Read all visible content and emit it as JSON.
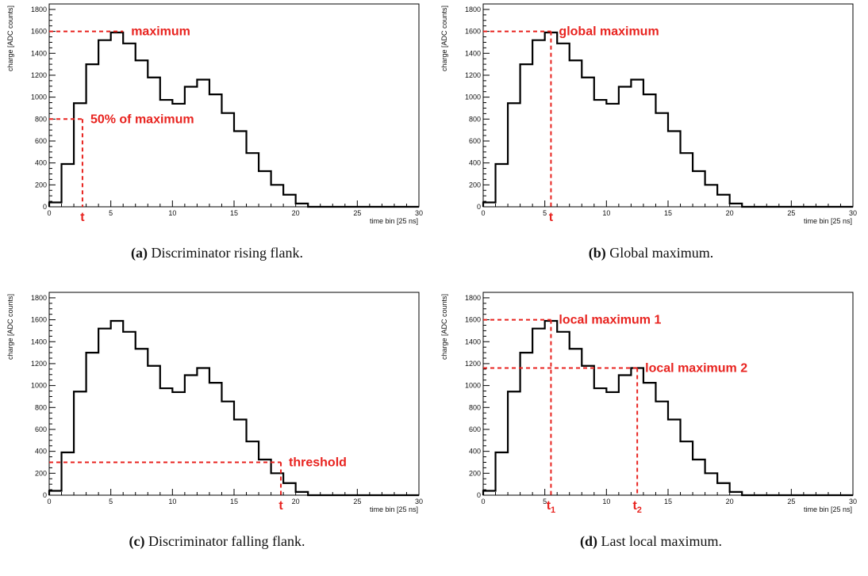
{
  "colors": {
    "annotation": "#e8231f",
    "histogram": "#000000"
  },
  "chart_data": [
    {
      "type": "bar",
      "xlabel": "time bin [25 ns]",
      "ylabel": "charge [ADC counts]",
      "xlim": [
        0,
        30
      ],
      "ylim": [
        0,
        1850
      ],
      "x_ticks": [
        "0",
        "5",
        "10",
        "15",
        "20",
        "25",
        "30"
      ],
      "y_ticks": [
        "0",
        "200",
        "400",
        "600",
        "800",
        "1000",
        "1200",
        "1400",
        "1600",
        "1800"
      ],
      "values": [
        40,
        390,
        945,
        1300,
        1520,
        1590,
        1490,
        1335,
        1180,
        975,
        940,
        1095,
        1160,
        1025,
        855,
        690,
        490,
        325,
        200,
        110,
        30,
        0,
        0,
        0,
        0,
        0,
        0,
        0,
        0,
        0
      ],
      "annotations": [
        {
          "text": "maximum",
          "value": 1600,
          "type": "hline",
          "from_x": 0,
          "to_x": 6
        },
        {
          "text": "50% of maximum",
          "value": 800,
          "type": "hline",
          "from_x": 0,
          "to_x": 2.7
        },
        {
          "type": "vline",
          "x": 2.7,
          "to_y": 800,
          "label": "t"
        }
      ],
      "caption_label": "(a)",
      "caption": "Discriminator rising flank."
    },
    {
      "type": "bar",
      "xlabel": "time bin [25 ns]",
      "ylabel": "charge [ADC counts]",
      "xlim": [
        0,
        30
      ],
      "ylim": [
        0,
        1850
      ],
      "x_ticks": [
        "0",
        "5",
        "10",
        "15",
        "20",
        "25",
        "30"
      ],
      "y_ticks": [
        "0",
        "200",
        "400",
        "600",
        "800",
        "1000",
        "1200",
        "1400",
        "1600",
        "1800"
      ],
      "values": [
        40,
        390,
        945,
        1300,
        1520,
        1590,
        1490,
        1335,
        1180,
        975,
        940,
        1095,
        1160,
        1025,
        855,
        690,
        490,
        325,
        200,
        110,
        30,
        0,
        0,
        0,
        0,
        0,
        0,
        0,
        0,
        0
      ],
      "annotations": [
        {
          "text": "global maximum",
          "value": 1600,
          "type": "hline",
          "from_x": 0,
          "to_x": 5.5
        },
        {
          "type": "vline",
          "x": 5.5,
          "to_y": 1600,
          "label": "t"
        }
      ],
      "caption_label": "(b)",
      "caption": "Global maximum."
    },
    {
      "type": "bar",
      "xlabel": "time bin [25 ns]",
      "ylabel": "charge [ADC counts]",
      "xlim": [
        0,
        30
      ],
      "ylim": [
        0,
        1850
      ],
      "x_ticks": [
        "0",
        "5",
        "10",
        "15",
        "20",
        "25",
        "30"
      ],
      "y_ticks": [
        "0",
        "200",
        "400",
        "600",
        "800",
        "1000",
        "1200",
        "1400",
        "1600",
        "1800"
      ],
      "values": [
        40,
        390,
        945,
        1300,
        1520,
        1590,
        1490,
        1335,
        1180,
        975,
        940,
        1095,
        1160,
        1025,
        855,
        690,
        490,
        325,
        200,
        110,
        30,
        0,
        0,
        0,
        0,
        0,
        0,
        0,
        0,
        0
      ],
      "annotations": [
        {
          "text": "threshold",
          "value": 300,
          "type": "hline",
          "from_x": 0,
          "to_x": 18.8
        },
        {
          "type": "vline",
          "x": 18.8,
          "to_y": 300,
          "label": "t"
        }
      ],
      "caption_label": "(c)",
      "caption": "Discriminator falling flank."
    },
    {
      "type": "bar",
      "xlabel": "time bin [25 ns]",
      "ylabel": "charge [ADC counts]",
      "xlim": [
        0,
        30
      ],
      "ylim": [
        0,
        1850
      ],
      "x_ticks": [
        "0",
        "5",
        "10",
        "15",
        "20",
        "25",
        "30"
      ],
      "y_ticks": [
        "0",
        "200",
        "400",
        "600",
        "800",
        "1000",
        "1200",
        "1400",
        "1600",
        "1800"
      ],
      "values": [
        40,
        390,
        945,
        1300,
        1520,
        1590,
        1490,
        1335,
        1180,
        975,
        940,
        1095,
        1160,
        1025,
        855,
        690,
        490,
        325,
        200,
        110,
        30,
        0,
        0,
        0,
        0,
        0,
        0,
        0,
        0,
        0
      ],
      "annotations": [
        {
          "text": "local maximum 1",
          "value": 1600,
          "type": "hline",
          "from_x": 0,
          "to_x": 5.5
        },
        {
          "type": "vline",
          "x": 5.5,
          "to_y": 1600,
          "label": "t",
          "sub": "1"
        },
        {
          "text": "local maximum 2",
          "value": 1160,
          "type": "hline",
          "from_x": 0,
          "to_x": 12.5
        },
        {
          "type": "vline",
          "x": 12.5,
          "to_y": 1160,
          "label": "t",
          "sub": "2"
        }
      ],
      "caption_label": "(d)",
      "caption": "Last local maximum."
    }
  ]
}
